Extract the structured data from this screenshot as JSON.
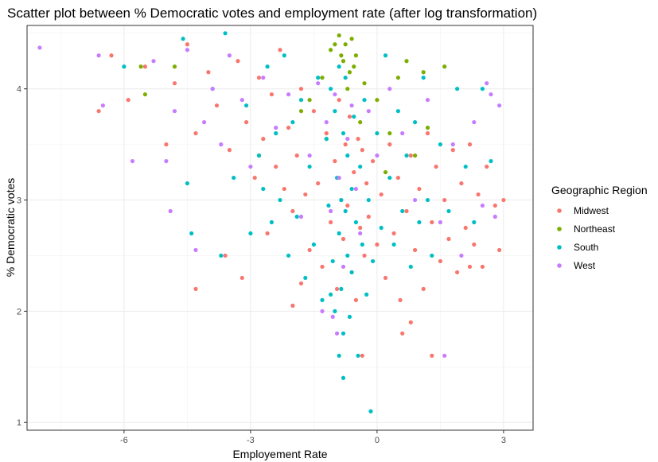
{
  "chart_data": {
    "type": "scatter",
    "title": "Scatter plot between % Democratic votes and employment rate (after log transformation)",
    "xlabel": "Employement Rate",
    "ylabel": "% Democratic votes",
    "xlim": [
      -8.3,
      3.7
    ],
    "ylim": [
      0.93,
      4.57
    ],
    "x_ticks": [
      {
        "value": -6,
        "label": "-6"
      },
      {
        "value": -3,
        "label": "-3"
      },
      {
        "value": 0,
        "label": "0"
      },
      {
        "value": 3,
        "label": "3"
      }
    ],
    "y_ticks": [
      {
        "value": 1,
        "label": "1"
      },
      {
        "value": 2,
        "label": "2"
      },
      {
        "value": 3,
        "label": "3"
      },
      {
        "value": 4,
        "label": "4"
      }
    ],
    "grid": true,
    "legend": {
      "title": "Geographic Region",
      "position": "right"
    },
    "series": [
      {
        "name": "Midwest",
        "color": "#F8766D",
        "points": [
          [
            -6.6,
            3.8
          ],
          [
            -6.3,
            4.3
          ],
          [
            -5.9,
            3.9
          ],
          [
            -5.5,
            4.2
          ],
          [
            -5.0,
            3.5
          ],
          [
            -4.8,
            4.05
          ],
          [
            -4.5,
            4.4
          ],
          [
            -4.3,
            3.6
          ],
          [
            -4.0,
            4.15
          ],
          [
            -3.8,
            3.85
          ],
          [
            -3.5,
            3.45
          ],
          [
            -3.3,
            4.25
          ],
          [
            -3.2,
            2.3
          ],
          [
            -3.1,
            3.7
          ],
          [
            -2.9,
            3.2
          ],
          [
            -2.8,
            4.1
          ],
          [
            -2.7,
            3.55
          ],
          [
            -2.6,
            2.7
          ],
          [
            -2.5,
            3.95
          ],
          [
            -2.4,
            3.3
          ],
          [
            -2.3,
            4.35
          ],
          [
            -2.2,
            3.1
          ],
          [
            -2.1,
            3.65
          ],
          [
            -2.0,
            2.9
          ],
          [
            -1.9,
            3.4
          ],
          [
            -1.8,
            4.0
          ],
          [
            -1.7,
            3.05
          ],
          [
            -1.6,
            2.55
          ],
          [
            -1.5,
            3.8
          ],
          [
            -1.4,
            3.15
          ],
          [
            -1.3,
            2.4
          ],
          [
            -1.2,
            3.6
          ],
          [
            -1.1,
            2.8
          ],
          [
            -1.0,
            3.35
          ],
          [
            -0.95,
            2.2
          ],
          [
            -0.9,
            3.9
          ],
          [
            -0.85,
            3.0
          ],
          [
            -0.8,
            2.65
          ],
          [
            -0.75,
            3.5
          ],
          [
            -0.7,
            2.95
          ],
          [
            -0.65,
            3.75
          ],
          [
            -0.6,
            2.35
          ],
          [
            -0.55,
            3.25
          ],
          [
            -0.5,
            2.1
          ],
          [
            -0.45,
            3.55
          ],
          [
            -0.4,
            2.75
          ],
          [
            -0.35,
            3.45
          ],
          [
            -0.3,
            2.5
          ],
          [
            -0.25,
            3.15
          ],
          [
            -0.2,
            2.85
          ],
          [
            -0.1,
            3.35
          ],
          [
            0.0,
            2.6
          ],
          [
            0.1,
            3.05
          ],
          [
            0.2,
            2.3
          ],
          [
            0.3,
            3.5
          ],
          [
            0.4,
            2.7
          ],
          [
            0.5,
            3.2
          ],
          [
            0.6,
            1.8
          ],
          [
            0.7,
            2.9
          ],
          [
            0.8,
            3.4
          ],
          [
            0.9,
            2.55
          ],
          [
            1.0,
            3.1
          ],
          [
            1.1,
            2.2
          ],
          [
            1.2,
            3.6
          ],
          [
            1.3,
            2.8
          ],
          [
            1.4,
            3.3
          ],
          [
            1.5,
            2.45
          ],
          [
            1.6,
            3.0
          ],
          [
            1.7,
            2.65
          ],
          [
            1.8,
            3.45
          ],
          [
            1.9,
            2.35
          ],
          [
            2.0,
            3.15
          ],
          [
            2.1,
            2.75
          ],
          [
            2.2,
            3.5
          ],
          [
            2.3,
            2.6
          ],
          [
            2.4,
            3.05
          ],
          [
            2.5,
            2.4
          ],
          [
            2.6,
            3.3
          ],
          [
            2.8,
            2.95
          ],
          [
            2.9,
            2.55
          ],
          [
            3.0,
            3.0
          ],
          [
            -0.35,
            1.6
          ],
          [
            0.55,
            2.1
          ],
          [
            1.3,
            1.6
          ],
          [
            -3.6,
            2.5
          ],
          [
            -4.3,
            2.2
          ],
          [
            -2.0,
            2.05
          ],
          [
            0.8,
            1.9
          ],
          [
            2.2,
            2.4
          ],
          [
            -1.8,
            2.25
          ]
        ]
      },
      {
        "name": "Northeast",
        "color": "#7CAE00",
        "points": [
          [
            -5.6,
            4.2
          ],
          [
            -5.5,
            3.95
          ],
          [
            -4.8,
            4.2
          ],
          [
            -2.8,
            3.4
          ],
          [
            -1.8,
            3.8
          ],
          [
            -1.6,
            3.9
          ],
          [
            -1.3,
            4.1
          ],
          [
            -1.1,
            4.35
          ],
          [
            -1.0,
            4.4
          ],
          [
            -0.9,
            4.48
          ],
          [
            -0.85,
            4.3
          ],
          [
            -0.8,
            4.25
          ],
          [
            -0.75,
            4.4
          ],
          [
            -0.7,
            4.0
          ],
          [
            -0.65,
            4.15
          ],
          [
            -0.6,
            4.45
          ],
          [
            -0.55,
            4.2
          ],
          [
            -0.5,
            4.3
          ],
          [
            -0.4,
            3.7
          ],
          [
            -0.3,
            4.05
          ],
          [
            0.0,
            3.9
          ],
          [
            0.3,
            3.6
          ],
          [
            0.5,
            4.1
          ],
          [
            0.7,
            4.25
          ],
          [
            1.1,
            4.15
          ],
          [
            1.2,
            3.65
          ],
          [
            1.6,
            4.2
          ],
          [
            0.9,
            3.4
          ],
          [
            -1.2,
            3.55
          ],
          [
            0.2,
            3.25
          ]
        ]
      },
      {
        "name": "South",
        "color": "#00BFC4",
        "points": [
          [
            -6.0,
            4.2
          ],
          [
            -4.6,
            4.45
          ],
          [
            -4.5,
            3.15
          ],
          [
            -4.4,
            2.7
          ],
          [
            -3.7,
            2.5
          ],
          [
            -3.6,
            4.5
          ],
          [
            -3.4,
            3.2
          ],
          [
            -3.1,
            3.85
          ],
          [
            -3.0,
            2.7
          ],
          [
            -2.8,
            3.4
          ],
          [
            -2.6,
            4.2
          ],
          [
            -2.5,
            2.8
          ],
          [
            -2.4,
            3.6
          ],
          [
            -2.3,
            3.0
          ],
          [
            -2.2,
            4.3
          ],
          [
            -2.1,
            2.5
          ],
          [
            -2.0,
            3.7
          ],
          [
            -1.9,
            2.85
          ],
          [
            -1.8,
            3.9
          ],
          [
            -1.7,
            2.3
          ],
          [
            -1.6,
            3.3
          ],
          [
            -1.5,
            2.6
          ],
          [
            -1.4,
            4.1
          ],
          [
            -1.3,
            2.1
          ],
          [
            -1.2,
            3.55
          ],
          [
            -1.15,
            2.95
          ],
          [
            -1.1,
            4.0
          ],
          [
            -1.05,
            2.45
          ],
          [
            -1.0,
            3.8
          ],
          [
            -1.0,
            2.0
          ],
          [
            -0.95,
            3.2
          ],
          [
            -0.9,
            2.7
          ],
          [
            -0.9,
            4.2
          ],
          [
            -0.85,
            3.0
          ],
          [
            -0.85,
            2.2
          ],
          [
            -0.8,
            3.6
          ],
          [
            -0.8,
            1.8
          ],
          [
            -0.75,
            2.9
          ],
          [
            -0.75,
            4.1
          ],
          [
            -0.7,
            3.4
          ],
          [
            -0.7,
            2.5
          ],
          [
            -0.65,
            1.95
          ],
          [
            -0.6,
            3.1
          ],
          [
            -0.6,
            2.35
          ],
          [
            -0.55,
            3.75
          ],
          [
            -0.5,
            2.8
          ],
          [
            -0.45,
            1.6
          ],
          [
            -0.4,
            3.3
          ],
          [
            -0.35,
            2.6
          ],
          [
            -0.3,
            3.9
          ],
          [
            -0.25,
            2.15
          ],
          [
            -0.2,
            3.0
          ],
          [
            -0.1,
            2.45
          ],
          [
            0.0,
            3.6
          ],
          [
            0.1,
            2.75
          ],
          [
            0.2,
            4.3
          ],
          [
            0.3,
            3.2
          ],
          [
            0.4,
            2.6
          ],
          [
            0.5,
            3.8
          ],
          [
            0.6,
            2.9
          ],
          [
            0.7,
            3.4
          ],
          [
            0.8,
            2.4
          ],
          [
            0.9,
            3.7
          ],
          [
            1.0,
            2.8
          ],
          [
            1.1,
            4.1
          ],
          [
            1.2,
            3.0
          ],
          [
            1.3,
            2.5
          ],
          [
            1.5,
            3.5
          ],
          [
            1.7,
            2.9
          ],
          [
            1.9,
            4.0
          ],
          [
            2.1,
            3.3
          ],
          [
            2.3,
            2.8
          ],
          [
            2.5,
            4.0
          ],
          [
            2.7,
            3.35
          ],
          [
            -0.8,
            1.4
          ],
          [
            -0.15,
            1.1
          ],
          [
            -0.9,
            1.6
          ],
          [
            -1.1,
            2.15
          ],
          [
            -2.7,
            3.1
          ],
          [
            -3.9,
            4.0
          ]
        ]
      },
      {
        "name": "West",
        "color": "#C77CFF",
        "points": [
          [
            -8.0,
            4.37
          ],
          [
            -6.6,
            4.3
          ],
          [
            -6.5,
            3.85
          ],
          [
            -5.8,
            3.35
          ],
          [
            -5.3,
            4.25
          ],
          [
            -5.0,
            3.35
          ],
          [
            -4.9,
            2.9
          ],
          [
            -4.8,
            3.8
          ],
          [
            -4.5,
            4.35
          ],
          [
            -4.3,
            2.55
          ],
          [
            -4.1,
            3.7
          ],
          [
            -3.9,
            4.0
          ],
          [
            -3.7,
            3.5
          ],
          [
            -3.5,
            4.3
          ],
          [
            -3.2,
            3.9
          ],
          [
            -3.0,
            3.3
          ],
          [
            -2.7,
            4.1
          ],
          [
            -2.4,
            3.65
          ],
          [
            -2.1,
            3.95
          ],
          [
            -1.8,
            2.85
          ],
          [
            -1.6,
            3.4
          ],
          [
            -1.4,
            4.05
          ],
          [
            -1.3,
            2.0
          ],
          [
            -1.2,
            3.7
          ],
          [
            -1.1,
            2.9
          ],
          [
            -1.0,
            3.95
          ],
          [
            -0.9,
            3.2
          ],
          [
            -0.8,
            2.4
          ],
          [
            -0.7,
            3.55
          ],
          [
            -0.6,
            3.85
          ],
          [
            -0.5,
            3.1
          ],
          [
            -0.4,
            2.7
          ],
          [
            -0.2,
            3.8
          ],
          [
            0.0,
            3.4
          ],
          [
            0.3,
            4.0
          ],
          [
            0.6,
            3.6
          ],
          [
            0.9,
            3.0
          ],
          [
            1.2,
            3.9
          ],
          [
            1.5,
            2.8
          ],
          [
            1.6,
            1.6
          ],
          [
            1.8,
            3.5
          ],
          [
            2.0,
            2.5
          ],
          [
            2.3,
            3.7
          ],
          [
            2.5,
            2.95
          ],
          [
            2.7,
            3.95
          ],
          [
            2.8,
            2.85
          ],
          [
            2.9,
            3.85
          ],
          [
            2.6,
            4.05
          ],
          [
            -0.95,
            1.8
          ],
          [
            -1.05,
            1.95
          ]
        ]
      }
    ]
  }
}
